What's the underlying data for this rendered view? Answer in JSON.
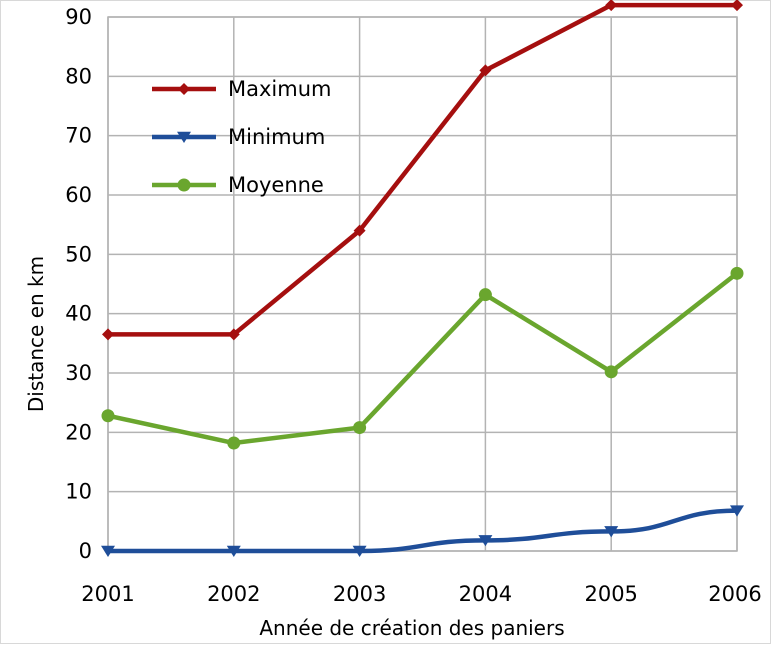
{
  "chart_data": {
    "type": "line",
    "title": "",
    "xlabel": "Année de création des paniers",
    "ylabel": "Distance en km",
    "categories": [
      "2001",
      "2002",
      "2003",
      "2004",
      "2005",
      "2006"
    ],
    "ylim": [
      0,
      90
    ],
    "yticks": [
      0,
      10,
      20,
      30,
      40,
      50,
      60,
      70,
      80,
      90
    ],
    "grid": true,
    "legend_position": "top-left",
    "series": [
      {
        "name": "Maximum",
        "color": "#a50f0f",
        "marker": "diamond",
        "values": [
          36.5,
          36.5,
          54,
          81,
          92,
          92
        ]
      },
      {
        "name": "Minimum",
        "color": "#1f4e99",
        "marker": "triangle-down",
        "values": [
          0,
          0,
          0,
          1.8,
          3.3,
          6.8
        ]
      },
      {
        "name": "Moyenne",
        "color": "#6aa62e",
        "marker": "circle",
        "values": [
          22.8,
          18.2,
          20.8,
          43.2,
          30.2,
          46.8
        ]
      }
    ]
  }
}
